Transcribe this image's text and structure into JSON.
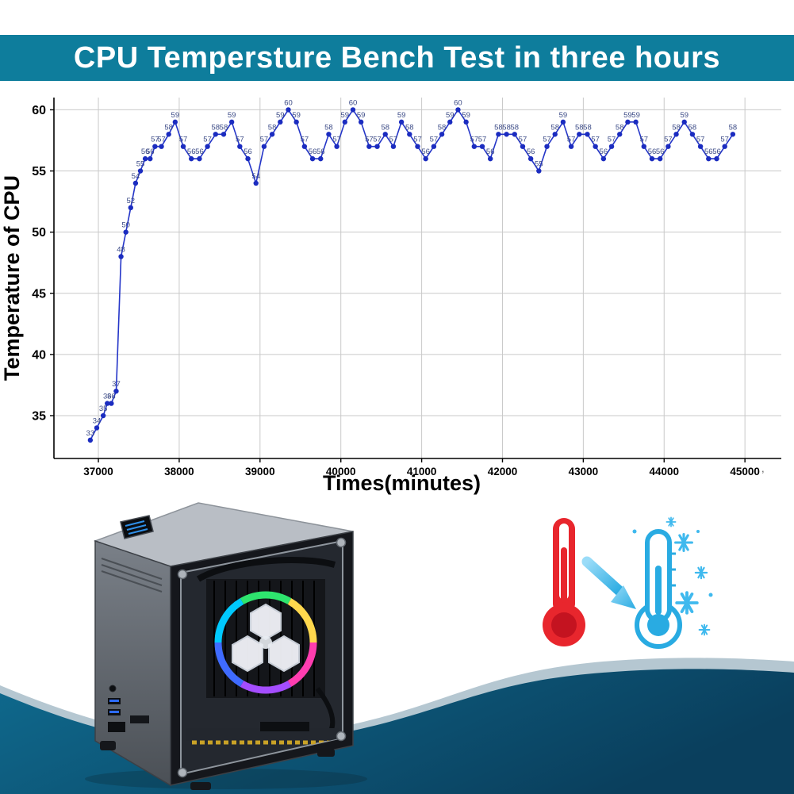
{
  "banner": {
    "title": "CPU Tempersture Bench Test in three hours",
    "bg_color": "#0e7d9c",
    "text_color": "#ffffff"
  },
  "chart_data": {
    "type": "line",
    "title": "",
    "xlabel": "Times(minutes)",
    "ylabel": "Temperature of CPU",
    "x_ticks": [
      37000,
      38000,
      39000,
      40000,
      41000,
      42000,
      43000,
      44000,
      45000
    ],
    "y_ticks": [
      35,
      40,
      45,
      50,
      55,
      60
    ],
    "xlim": [
      36450,
      45450
    ],
    "ylim": [
      31.5,
      61
    ],
    "grid": true,
    "legend_position": "none",
    "point_labels": true,
    "colors": {
      "line": "#2435c8",
      "point": "#1b2cc0",
      "label": "#3b4a86",
      "grid": "#c9c9c9",
      "axis": "#000000",
      "tick_text": "#000000"
    },
    "series": [
      {
        "name": "CPU temperature",
        "x": [
          36900,
          36980,
          37060,
          37110,
          37160,
          37220,
          37280,
          37340,
          37400,
          37460,
          37520,
          37580,
          37640,
          37700,
          37780,
          37870,
          37950,
          38050,
          38150,
          38250,
          38350,
          38450,
          38550,
          38650,
          38750,
          38850,
          38950,
          39050,
          39150,
          39250,
          39350,
          39450,
          39550,
          39650,
          39750,
          39850,
          39950,
          40050,
          40150,
          40250,
          40350,
          40450,
          40550,
          40650,
          40750,
          40850,
          40950,
          41050,
          41150,
          41250,
          41350,
          41450,
          41550,
          41650,
          41750,
          41850,
          41950,
          42050,
          42150,
          42250,
          42350,
          42450,
          42550,
          42650,
          42750,
          42850,
          42950,
          43050,
          43150,
          43250,
          43350,
          43450,
          43550,
          43650,
          43750,
          43850,
          43950,
          44050,
          44150,
          44250,
          44350,
          44450,
          44550,
          44650,
          44750,
          44850
        ],
        "y": [
          33,
          34,
          35,
          36,
          36,
          37,
          48,
          50,
          52,
          54,
          55,
          56,
          56,
          57,
          57,
          58,
          59,
          57,
          56,
          56,
          57,
          58,
          58,
          59,
          57,
          56,
          54,
          57,
          58,
          59,
          60,
          59,
          57,
          56,
          56,
          58,
          57,
          59,
          60,
          59,
          57,
          57,
          58,
          57,
          59,
          58,
          57,
          56,
          57,
          58,
          59,
          60,
          59,
          57,
          57,
          56,
          58,
          58,
          58,
          57,
          56,
          55,
          57,
          58,
          59,
          57,
          58,
          58,
          57,
          56,
          57,
          58,
          59,
          59,
          57,
          56,
          56,
          57,
          58,
          59,
          58,
          57,
          56,
          56,
          57,
          58
        ]
      }
    ]
  },
  "footer_mark": ",",
  "illustration": {
    "pc_case": "mini-itx-pc-with-rgb-cooler",
    "red_thermometer_color": "#e8262d",
    "blue_thermometer_color": "#29abe2",
    "arrow_color": "#53bff0",
    "snowflake_color": "#3fb9ee",
    "wave_light": "#b5c7d1",
    "wave_dark_start": "#0f6a8e",
    "wave_dark_end": "#0a3f5d"
  }
}
